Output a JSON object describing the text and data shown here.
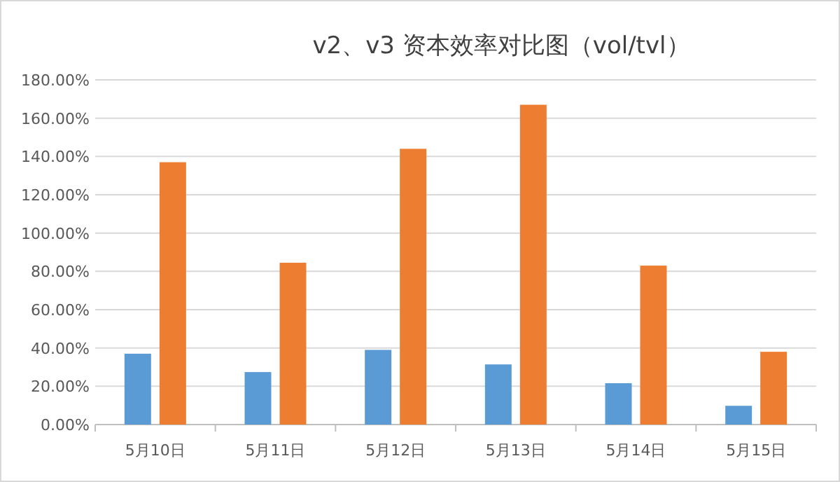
{
  "chart_data": {
    "type": "bar",
    "title": "v2、v3 资本效率对比图（vol/tvl）",
    "categories": [
      "5月10日",
      "5月11日",
      "5月12日",
      "5月13日",
      "5月14日",
      "5月15日"
    ],
    "series": [
      {
        "color": "#5b9bd5",
        "values": [
          37,
          27.4,
          39,
          31.4,
          21.6,
          9.8
        ]
      },
      {
        "color": "#ed7d31",
        "values": [
          137,
          84.5,
          144,
          167,
          83,
          38
        ]
      }
    ],
    "ylim": [
      0,
      180
    ],
    "yticks": [
      {
        "value": 0,
        "label": "0.00%"
      },
      {
        "value": 20,
        "label": "20.00%"
      },
      {
        "value": 40,
        "label": "40.00%"
      },
      {
        "value": 60,
        "label": "60.00%"
      },
      {
        "value": 80,
        "label": "80.00%"
      },
      {
        "value": 100,
        "label": "100.00%"
      },
      {
        "value": 120,
        "label": "120.00%"
      },
      {
        "value": 140,
        "label": "140.00%"
      },
      {
        "value": 160,
        "label": "160.00%"
      },
      {
        "value": 180,
        "label": "180.00%"
      }
    ],
    "grid": "y"
  }
}
